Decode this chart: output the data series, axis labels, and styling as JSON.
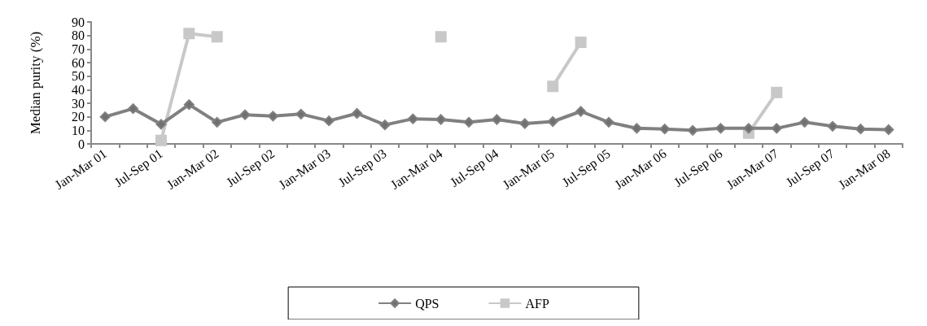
{
  "chart_data": {
    "type": "line",
    "ylabel": "Median purity (%)",
    "categories": [
      "Jan-Mar 01",
      null,
      "Jul-Sep 01",
      null,
      "Jan-Mar 02",
      null,
      "Jul-Sep 02",
      null,
      "Jan-Mar 03",
      null,
      "Jul-Sep 03",
      null,
      "Jan-Mar 04",
      null,
      "Jul-Sep 04",
      null,
      "Jan-Mar 05",
      null,
      "Jul-Sep 05",
      null,
      "Jan-Mar 06",
      null,
      "Jul-Sep 06",
      null,
      "Jan-Mar 07",
      null,
      "Jul-Sep 07",
      null,
      "Jan-Mar 08"
    ],
    "series": [
      {
        "name": "QPS",
        "color": "#808080",
        "marker": "diamond",
        "values": [
          20,
          26,
          14.5,
          29,
          16,
          21.5,
          20.5,
          22,
          17,
          22.5,
          14,
          18.5,
          18,
          16,
          18,
          15,
          16.5,
          24,
          16,
          11.5,
          11,
          10,
          11.5,
          11.5,
          11.5,
          16,
          13,
          11,
          10.5
        ]
      },
      {
        "name": "AFP",
        "color": "#c8c8c8",
        "marker": "square",
        "values": [
          null,
          null,
          2.5,
          81.5,
          79,
          null,
          null,
          null,
          null,
          null,
          null,
          null,
          79,
          null,
          null,
          null,
          42.5,
          75,
          null,
          null,
          null,
          null,
          null,
          8,
          38,
          null,
          null,
          null,
          null
        ]
      }
    ],
    "ylim": [
      0,
      90
    ],
    "yticks": [
      0,
      10,
      20,
      30,
      40,
      50,
      60,
      70,
      80,
      90
    ],
    "grid": false,
    "legend": "bottom"
  }
}
